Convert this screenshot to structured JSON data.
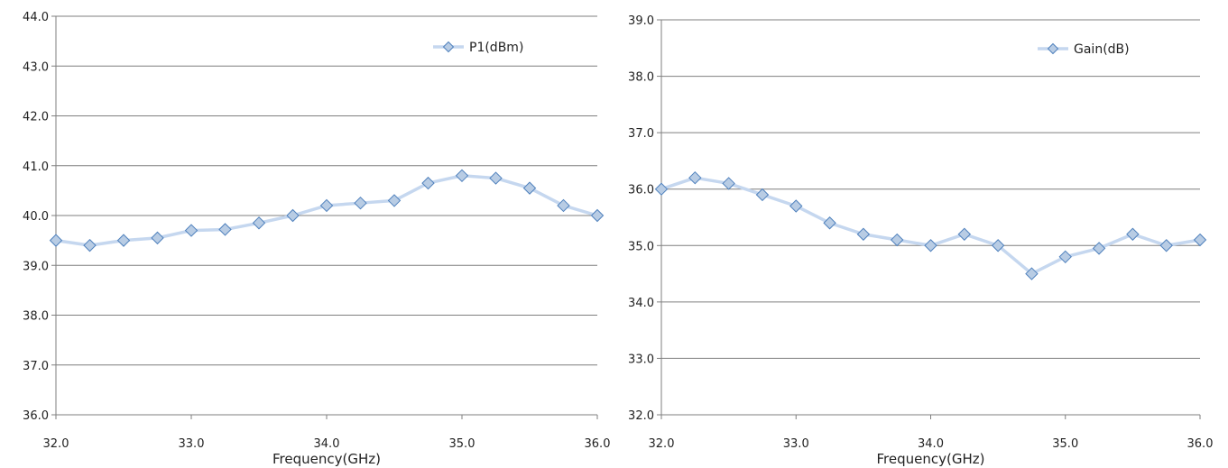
{
  "chart_data": [
    {
      "type": "line",
      "xlabel": "Frequency(GHz)",
      "ylabel": "",
      "xlim": [
        32,
        36
      ],
      "ylim": [
        36,
        44
      ],
      "x_ticks": [
        "32.0",
        "33.0",
        "34.0",
        "35.0",
        "36.0"
      ],
      "y_ticks": [
        "36.0",
        "37.0",
        "38.0",
        "39.0",
        "40.0",
        "41.0",
        "42.0",
        "43.0",
        "44.0"
      ],
      "grid": "horizontal",
      "legend": "top-right",
      "series": [
        {
          "name": "P1(dBm)",
          "x": [
            32.0,
            32.25,
            32.5,
            32.75,
            33.0,
            33.25,
            33.5,
            33.75,
            34.0,
            34.25,
            34.5,
            34.75,
            35.0,
            35.25,
            35.5,
            35.75,
            36.0
          ],
          "y": [
            39.5,
            39.4,
            39.5,
            39.55,
            39.7,
            39.72,
            39.85,
            40.0,
            40.2,
            40.25,
            40.3,
            40.65,
            40.8,
            40.75,
            40.55,
            40.2,
            40.0
          ]
        }
      ]
    },
    {
      "type": "line",
      "xlabel": "Frequency(GHz)",
      "ylabel": "",
      "xlim": [
        32,
        36
      ],
      "ylim": [
        32,
        39
      ],
      "x_ticks": [
        "32.0",
        "33.0",
        "34.0",
        "35.0",
        "36.0"
      ],
      "y_ticks": [
        "32.0",
        "33.0",
        "34.0",
        "35.0",
        "36.0",
        "37.0",
        "38.0",
        "39.0"
      ],
      "grid": "horizontal",
      "legend": "top-right",
      "series": [
        {
          "name": "Gain(dB)",
          "x": [
            32.0,
            32.25,
            32.5,
            32.75,
            33.0,
            33.25,
            33.5,
            33.75,
            34.0,
            34.25,
            34.5,
            34.75,
            35.0,
            35.25,
            35.5,
            35.75,
            36.0
          ],
          "y": [
            36.0,
            36.2,
            36.1,
            35.9,
            35.7,
            35.4,
            35.2,
            35.1,
            35.0,
            35.2,
            35.0,
            34.5,
            34.8,
            34.95,
            35.2,
            35.0,
            35.1
          ]
        }
      ]
    }
  ],
  "colors": {
    "line": "#c5d7ef",
    "marker_fill": "#b8cce4",
    "marker_stroke": "#4f81bd",
    "grid": "#7f7f7f",
    "axis": "#7f7f7f"
  }
}
